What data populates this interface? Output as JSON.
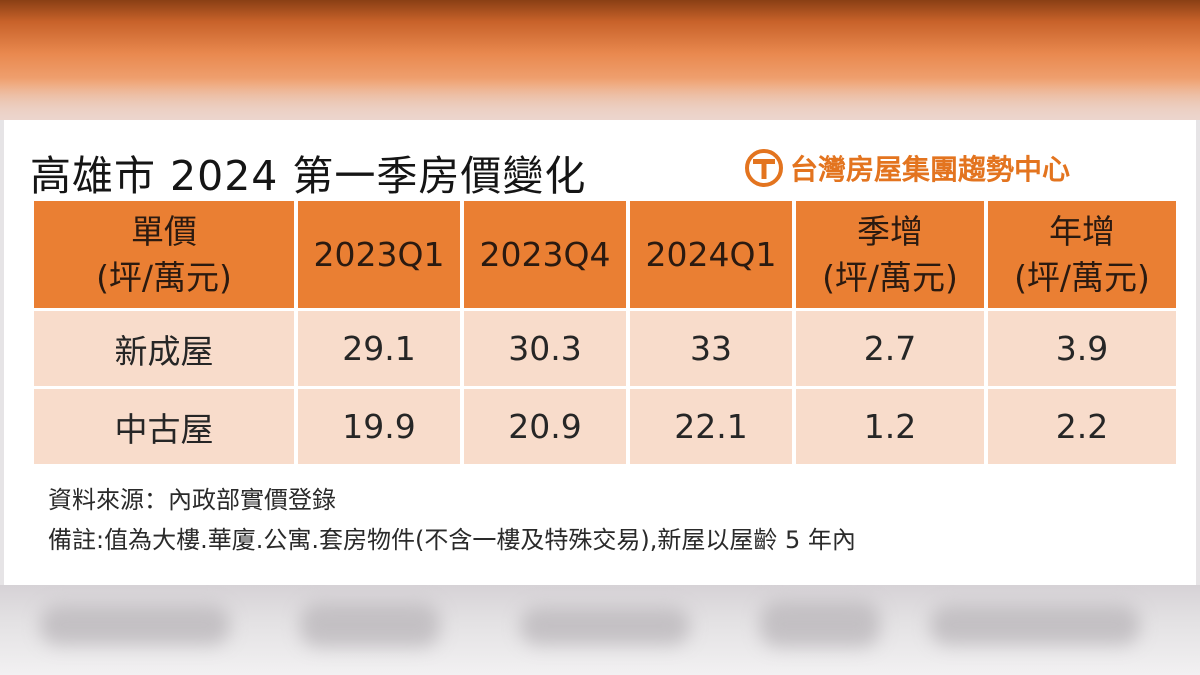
{
  "title": "高雄市 2024 第一季房價變化",
  "brand": {
    "name": "台灣房屋集團趨勢中心",
    "logo_icon": "taiwan-realty-t-logo",
    "color": "#e3741f"
  },
  "accent_color": "#ea7f33",
  "row_color": "#f8dccb",
  "table": {
    "headers": [
      {
        "line1": "單價",
        "line2": "(坪/萬元)"
      },
      {
        "line1": "2023Q1",
        "line2": ""
      },
      {
        "line1": "2023Q4",
        "line2": ""
      },
      {
        "line1": "2024Q1",
        "line2": ""
      },
      {
        "line1": "季增",
        "line2": "(坪/萬元)"
      },
      {
        "line1": "年增",
        "line2": "(坪/萬元)"
      }
    ],
    "rows": [
      [
        "新成屋",
        "29.1",
        "30.3",
        "33",
        "2.7",
        "3.9"
      ],
      [
        "中古屋",
        "19.9",
        "20.9",
        "22.1",
        "1.2",
        "2.2"
      ]
    ]
  },
  "notes": {
    "source": "資料來源：內政部實價登錄",
    "remark": "備註:值為大樓.華廈.公寓.套房物件(不含一樓及特殊交易),新屋以屋齡 5 年內"
  }
}
